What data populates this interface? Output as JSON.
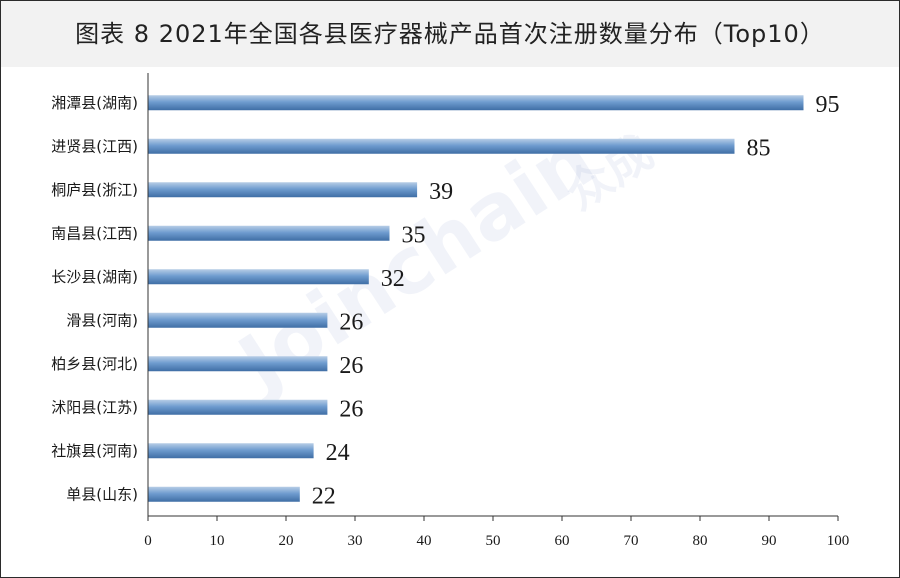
{
  "title": "图表 8  2021年全国各县医疗器械产品首次注册数量分布（Top10）",
  "watermark": {
    "text": "Joinchain",
    "cn": "众成"
  },
  "colors": {
    "bar_top": "#b7cde6",
    "bar_mid": "#6f9ccf",
    "bar_bottom": "#3f6ea5",
    "axis": "#333333",
    "title_bg": "#f2f2f2"
  },
  "chart_data": {
    "type": "bar",
    "orientation": "horizontal",
    "categories": [
      "湘潭县(湖南)",
      "进贤县(江西)",
      "桐庐县(浙江)",
      "南昌县(江西)",
      "长沙县(湖南)",
      "滑县(河南)",
      "柏乡县(河北)",
      "沭阳县(江苏)",
      "社旗县(河南)",
      "单县(山东)"
    ],
    "values": [
      95,
      85,
      39,
      35,
      32,
      26,
      26,
      26,
      24,
      22
    ],
    "xlim": [
      0,
      100
    ],
    "xticks": [
      0,
      10,
      20,
      30,
      40,
      50,
      60,
      70,
      80,
      90,
      100
    ],
    "grid": false,
    "legend": "none"
  }
}
